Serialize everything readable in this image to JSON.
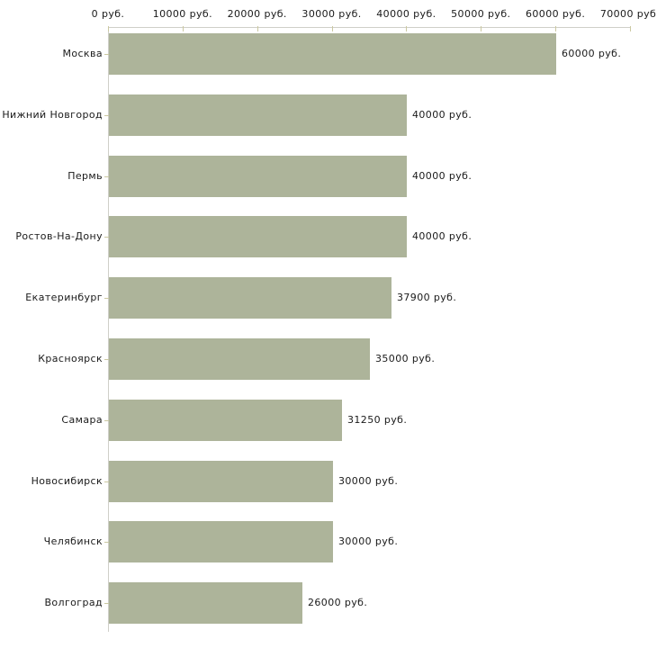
{
  "chart_data": {
    "type": "bar",
    "orientation": "horizontal",
    "title": "",
    "categories": [
      "Москва",
      "Нижний Новгород",
      "Пермь",
      "Ростов-На-Дону",
      "Екатеринбург",
      "Красноярск",
      "Самара",
      "Новосибирск",
      "Челябинск",
      "Волгоград"
    ],
    "values": [
      60000,
      40000,
      40000,
      40000,
      37900,
      35000,
      31250,
      30000,
      30000,
      26000
    ],
    "value_labels": [
      "60000 руб.",
      "40000 руб.",
      "40000 руб.",
      "40000 руб.",
      "37900 руб.",
      "35000 руб.",
      "31250 руб.",
      "30000 руб.",
      "30000 руб.",
      "26000 руб."
    ],
    "x_axis": {
      "position": "top",
      "xlim": [
        0,
        70000
      ],
      "ticks": [
        0,
        10000,
        20000,
        30000,
        40000,
        50000,
        60000,
        70000
      ],
      "tick_labels": [
        "0 руб.",
        "10000 руб.",
        "20000 руб.",
        "30000 руб.",
        "40000 руб.",
        "50000 руб.",
        "60000 руб.",
        "70000 руб."
      ]
    },
    "grid": false,
    "legend": false,
    "colors": {
      "bar": "#adb49a",
      "axis_line": "#cfcfc9",
      "tick": "#cbc8a2",
      "text": "#1a1a1a",
      "background": "#ffffff"
    }
  }
}
